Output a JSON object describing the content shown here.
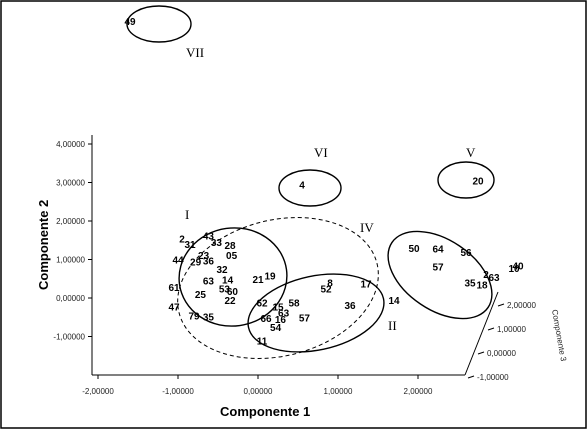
{
  "chart_data": {
    "type": "scatter",
    "title": "",
    "xlabel": "Componente 1",
    "ylabel": "Componente 2",
    "zlabel": "Componente 3",
    "x_ticks": [
      "-2,00000",
      "-1,00000",
      "0,00000",
      "1,00000",
      "2,00000"
    ],
    "y_ticks": [
      "4,00000",
      "3,00000",
      "2,00000",
      "1,00000",
      "0,00000",
      "-1,00000"
    ],
    "z_ticks": [
      "2,00000",
      "1,00000",
      "0,00000",
      "-1,00000"
    ],
    "colors": {
      "ink": "#000000",
      "background": "#ffffff"
    },
    "groups": [
      {
        "label": "I"
      },
      {
        "label": "II"
      },
      {
        "label": "IV"
      },
      {
        "label": "V"
      },
      {
        "label": "VI"
      },
      {
        "label": "VII"
      }
    ],
    "points": [
      {
        "label": "49",
        "x": -1.6,
        "y": 7.2
      },
      {
        "label": "4",
        "x": 0.55,
        "y": 2.95
      },
      {
        "label": "20",
        "x": 2.75,
        "y": 3.05
      },
      {
        "label": "2",
        "x": -0.95,
        "y": 1.55
      },
      {
        "label": "43",
        "x": -0.62,
        "y": 1.62
      },
      {
        "label": "31",
        "x": -0.85,
        "y": 1.4
      },
      {
        "label": "33",
        "x": -0.52,
        "y": 1.45
      },
      {
        "label": "28",
        "x": -0.35,
        "y": 1.38
      },
      {
        "label": "44",
        "x": -1.0,
        "y": 1.0
      },
      {
        "label": "23",
        "x": -0.68,
        "y": 1.12
      },
      {
        "label": "29",
        "x": -0.78,
        "y": 0.95
      },
      {
        "label": "36",
        "x": -0.62,
        "y": 0.98
      },
      {
        "label": "05",
        "x": -0.33,
        "y": 1.12
      },
      {
        "label": "32",
        "x": -0.45,
        "y": 0.75
      },
      {
        "label": "21",
        "x": 0.0,
        "y": 0.5
      },
      {
        "label": "19",
        "x": 0.15,
        "y": 0.58
      },
      {
        "label": "63",
        "x": -0.62,
        "y": 0.45
      },
      {
        "label": "14",
        "x": -0.38,
        "y": 0.48
      },
      {
        "label": "53",
        "x": -0.42,
        "y": 0.25
      },
      {
        "label": "60",
        "x": -0.32,
        "y": 0.18
      },
      {
        "label": "61",
        "x": -1.05,
        "y": 0.28
      },
      {
        "label": "25",
        "x": -0.72,
        "y": 0.1
      },
      {
        "label": "47",
        "x": -1.05,
        "y": -0.22
      },
      {
        "label": "22",
        "x": -0.35,
        "y": -0.05
      },
      {
        "label": "79",
        "x": -0.8,
        "y": -0.45
      },
      {
        "label": "35",
        "x": -0.62,
        "y": -0.48
      },
      {
        "label": "62",
        "x": 0.05,
        "y": -0.12
      },
      {
        "label": "15",
        "x": 0.25,
        "y": -0.22
      },
      {
        "label": "58",
        "x": 0.45,
        "y": -0.12
      },
      {
        "label": "63",
        "x": 0.32,
        "y": -0.38
      },
      {
        "label": "66",
        "x": 0.1,
        "y": -0.52
      },
      {
        "label": "16",
        "x": 0.28,
        "y": -0.55
      },
      {
        "label": "57",
        "x": 0.58,
        "y": -0.5
      },
      {
        "label": "54",
        "x": 0.22,
        "y": -0.75
      },
      {
        "label": "8",
        "x": 0.9,
        "y": 0.4
      },
      {
        "label": "52",
        "x": 0.85,
        "y": 0.25
      },
      {
        "label": "17",
        "x": 1.35,
        "y": 0.38
      },
      {
        "label": "36",
        "x": 1.15,
        "y": -0.18
      },
      {
        "label": "14",
        "x": 1.7,
        "y": -0.05
      },
      {
        "label": "11",
        "x": 0.05,
        "y": -1.1
      },
      {
        "label": "50",
        "x": 1.95,
        "y": 1.3
      },
      {
        "label": "64",
        "x": 2.25,
        "y": 1.28
      },
      {
        "label": "56",
        "x": 2.6,
        "y": 1.2
      },
      {
        "label": "57",
        "x": 2.25,
        "y": 0.82
      },
      {
        "label": "2",
        "x": 2.85,
        "y": 0.62
      },
      {
        "label": "63",
        "x": 2.95,
        "y": 0.55
      },
      {
        "label": "35",
        "x": 2.65,
        "y": 0.4
      },
      {
        "label": "18",
        "x": 2.8,
        "y": 0.35
      },
      {
        "label": "40",
        "x": 3.25,
        "y": 0.85
      },
      {
        "label": "10",
        "x": 3.2,
        "y": 0.78
      }
    ]
  }
}
